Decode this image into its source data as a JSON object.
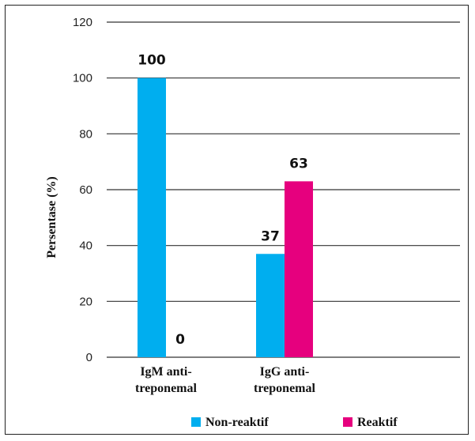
{
  "chart_data": {
    "type": "bar",
    "title": "",
    "xlabel": "",
    "ylabel": "Persentase (%)",
    "ylim": [
      0,
      120
    ],
    "yticks": [
      0,
      20,
      40,
      60,
      80,
      100,
      120
    ],
    "grid": true,
    "legend_position": "bottom",
    "categories": [
      [
        "IgM anti-",
        "treponemal"
      ],
      [
        "IgG anti-",
        "treponemal"
      ]
    ],
    "series": [
      {
        "name": "Non-reaktif",
        "color": "#00AEEF",
        "values": [
          100,
          37
        ]
      },
      {
        "name": "Reaktif",
        "color": "#E6007E",
        "values": [
          0,
          63
        ]
      }
    ]
  }
}
